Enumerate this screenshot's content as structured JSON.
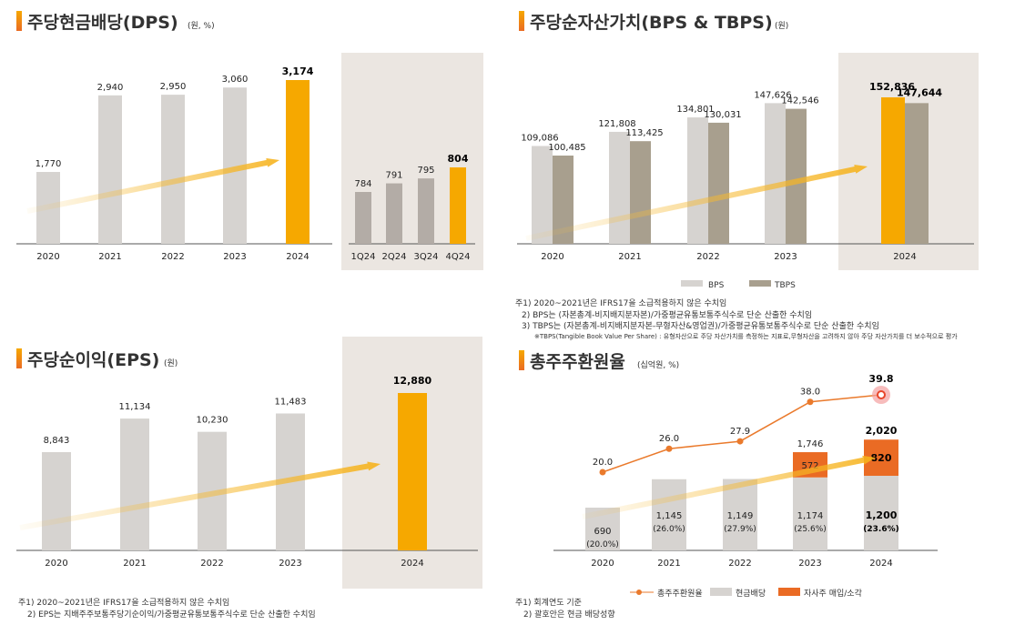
{
  "colors": {
    "gray_bar": "#d6d3d0",
    "tbps_bar": "#a89f8e",
    "quarter_bar": "#b3aca6",
    "highlight": "#f6a800",
    "buyback": "#ea6b24",
    "line": "#ea7a2c",
    "panel": "#ebe6e1"
  },
  "dps": {
    "title": "주당현금배당(DPS)",
    "unit": "(원, %)"
  },
  "bps": {
    "title": "주당순자산가치(BPS & TBPS)",
    "unit": "(원)",
    "notes": [
      "주1) 2020~2021년은 IFRS17을 소급적용하지 않은 수치임",
      "2) BPS는 (자본총계-비지배지분자본)/가중평균유통보통주식수로 단순 산출한 수치임",
      "3) TBPS는 (자본총계-비지배지분자본-무형자산&영업권)/가중평균유통보통주식수로 단순 산출한 수치임",
      "※TBPS(Tangible Book Value Per Share) : 유형자산으로 주당 자산가치를 측정하는 지표로,무형자산을 고려하지 않아 주당 자산가치를 더 보수적으로 평가"
    ]
  },
  "eps": {
    "title": "주당순이익(EPS)",
    "unit": "(원)",
    "notes": [
      "주1) 2020~2021년은 IFRS17을 소급적용하지 않은 수치임",
      "2) EPS는 지배주주보통주당기순이익/가중평균유통보통주식수로 단순 산출한 수치임"
    ]
  },
  "tsr": {
    "title": "총주주환원율",
    "unit": "(십억원, %)",
    "notes": [
      "주1) 회계연도 기준",
      "2) 괄호안은 현금 배당성향"
    ]
  },
  "chart_data": [
    {
      "type": "bar",
      "categories": [
        "2020",
        "2021",
        "2022",
        "2023",
        "2024"
      ],
      "values": [
        1770,
        2940,
        2950,
        3060,
        3174
      ],
      "labels": [
        "1,770",
        "2,940",
        "2,950",
        "3,060",
        "3,174"
      ]
    },
    {
      "type": "bar",
      "categories": [
        "1Q24",
        "2Q24",
        "3Q24",
        "4Q24"
      ],
      "values": [
        784,
        791,
        795,
        804
      ],
      "labels": [
        "784",
        "791",
        "795",
        "804"
      ]
    },
    {
      "type": "bar",
      "categories": [
        "2020",
        "2021",
        "2022",
        "2023",
        "2024"
      ],
      "series": [
        {
          "name": "BPS",
          "values": [
            109086,
            121808,
            134801,
            147626,
            152836
          ],
          "labels": [
            "109,086",
            "121,808",
            "134,801",
            "147,626",
            "152,836"
          ]
        },
        {
          "name": "TBPS",
          "values": [
            100485,
            113425,
            130031,
            142546,
            147644
          ],
          "labels": [
            "100,485",
            "113,425",
            "130,031",
            "142,546",
            "147,644"
          ]
        }
      ],
      "legend": "bottom"
    },
    {
      "type": "bar",
      "categories": [
        "2020",
        "2021",
        "2022",
        "2023",
        "2024"
      ],
      "values": [
        8843,
        11134,
        10230,
        11483,
        12880
      ],
      "labels": [
        "8,843",
        "11,134",
        "10,230",
        "11,483",
        "12,880"
      ]
    },
    {
      "type": "bar",
      "categories": [
        "2020",
        "2021",
        "2022",
        "2023",
        "2024"
      ],
      "series": [
        {
          "name": "현금배당",
          "values": [
            690,
            1145,
            1149,
            1174,
            1200
          ],
          "labels": [
            "690",
            "1,145",
            "1,149",
            "1,174",
            "1,200"
          ],
          "payout_labels": [
            "(20.0%)",
            "(26.0%)",
            "(27.9%)",
            "(25.6%)",
            "(23.6%)"
          ]
        },
        {
          "name": "자사주 매입/소각",
          "values": [
            0,
            0,
            0,
            572,
            820
          ],
          "labels": [
            "",
            "",
            "",
            "572",
            "820"
          ]
        },
        {
          "name": "총주주환원율",
          "type": "line",
          "values": [
            20.0,
            26.0,
            27.9,
            38.0,
            39.8
          ],
          "labels": [
            "20.0",
            "26.0",
            "27.9",
            "38.0",
            "39.8"
          ]
        }
      ],
      "totals": [
        "",
        "",
        "",
        "1,746",
        "2,020"
      ],
      "legend": "bottom"
    }
  ]
}
